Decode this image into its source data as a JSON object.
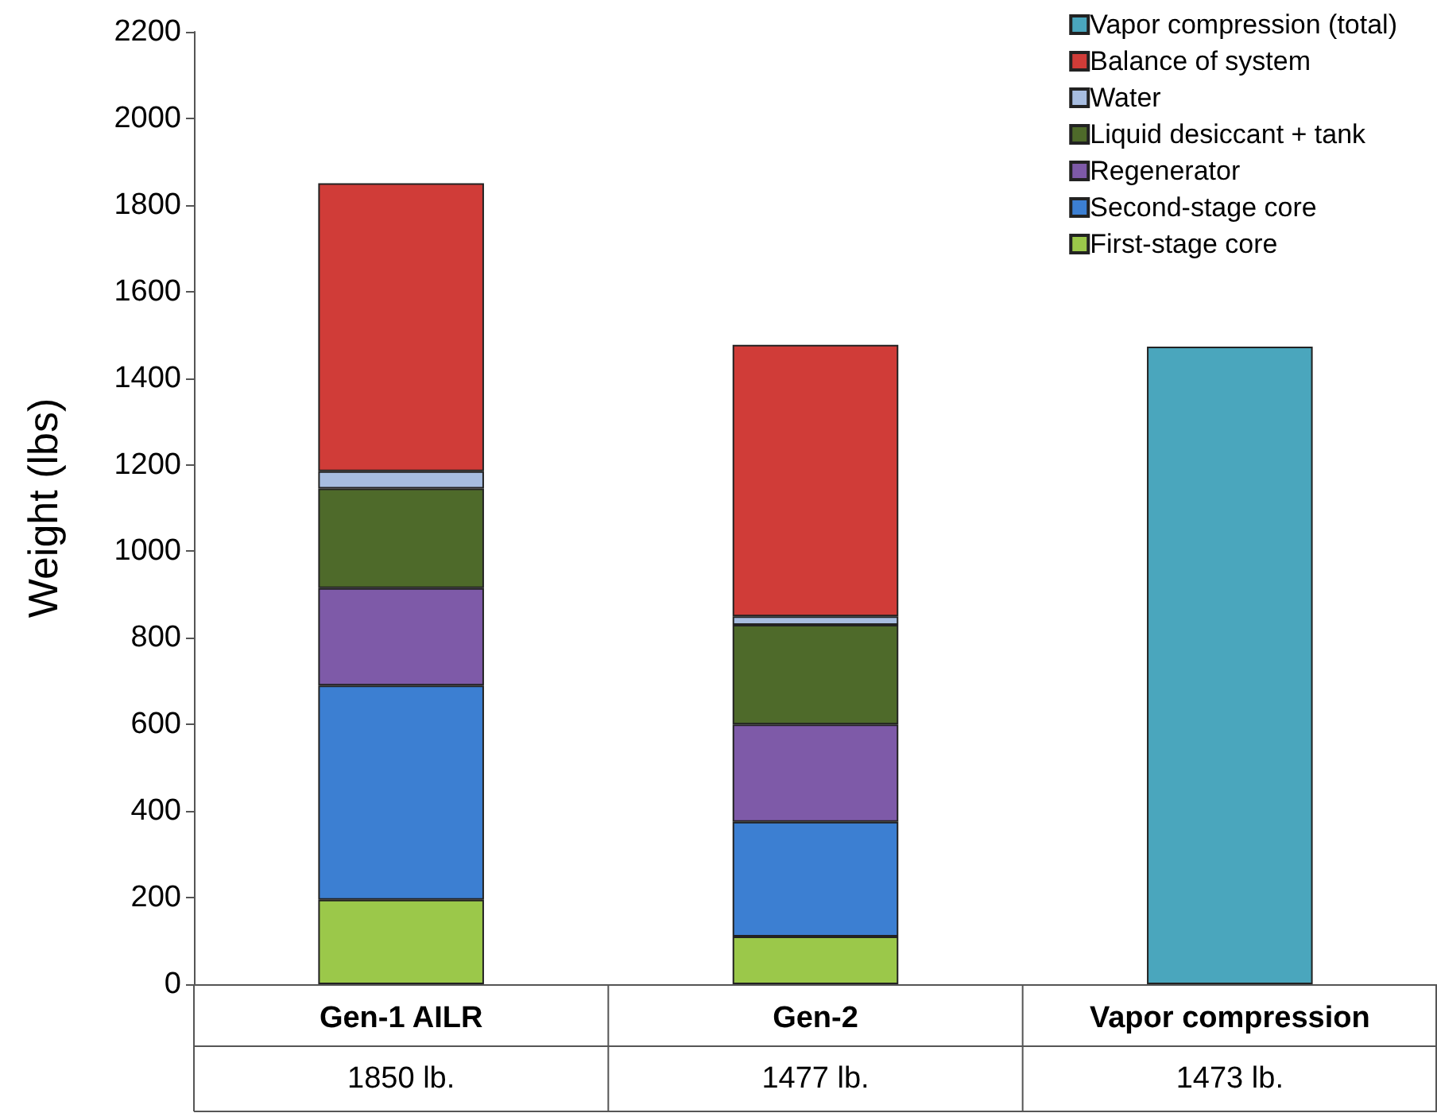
{
  "chart_data": {
    "type": "bar",
    "stacked": true,
    "ylabel": "Weight (lbs)",
    "categories": [
      "Gen-1 AILR",
      "Gen-2",
      "Vapor compression"
    ],
    "series": [
      {
        "name": "First-stage core",
        "color": "#9bc84a",
        "values": [
          195,
          110,
          null
        ]
      },
      {
        "name": "Second-stage core",
        "color": "#3c7fd2",
        "values": [
          495,
          265,
          null
        ]
      },
      {
        "name": "Regenerator",
        "color": "#7e5aa8",
        "values": [
          225,
          225,
          null
        ]
      },
      {
        "name": "Liquid desiccant + tank",
        "color": "#4e6a2a",
        "values": [
          230,
          230,
          null
        ]
      },
      {
        "name": "Water",
        "color": "#a7bde0",
        "values": [
          40,
          20,
          null
        ]
      },
      {
        "name": "Balance of system",
        "color": "#d03c38",
        "values": [
          665,
          627,
          null
        ]
      },
      {
        "name": "Vapor compression (total)",
        "color": "#4aa6bd",
        "values": [
          null,
          null,
          1473
        ]
      }
    ],
    "ylim": [
      0,
      2200
    ],
    "yticks": [
      0,
      200,
      400,
      600,
      800,
      1000,
      1200,
      1400,
      1600,
      1800,
      2000,
      2200
    ],
    "totals": [
      "1850 lb.",
      "1477 lb.",
      "1473 lb."
    ],
    "legend": "top right"
  }
}
